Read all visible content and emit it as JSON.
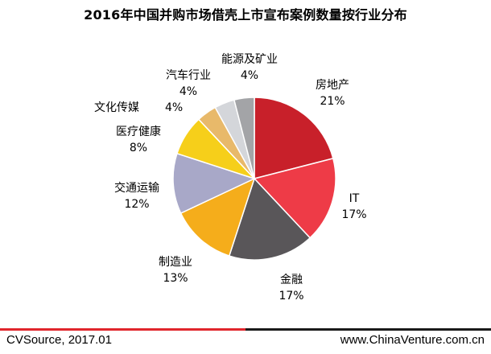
{
  "chart_data": {
    "type": "pie",
    "title": "2016年中国并购市场借壳上市宣布案例数量按行业分布",
    "slices": [
      {
        "name": "房地产",
        "label": "21%",
        "value": 21,
        "color": "#c8202a"
      },
      {
        "name": "IT",
        "label": "17%",
        "value": 17,
        "color": "#ee3b47"
      },
      {
        "name": "金融",
        "label": "17%",
        "value": 17,
        "color": "#595659"
      },
      {
        "name": "制造业",
        "label": "13%",
        "value": 13,
        "color": "#f5ad1b"
      },
      {
        "name": "交通运输",
        "label": "12%",
        "value": 12,
        "color": "#a8a8c8"
      },
      {
        "name": "医疗健康",
        "label": "8%",
        "value": 8,
        "color": "#f6cf1a"
      },
      {
        "name": "文化传媒",
        "label": "4%",
        "value": 4,
        "color": "#e8b96a"
      },
      {
        "name": "汽车行业",
        "label": "4%",
        "value": 4,
        "color": "#d4d6da"
      },
      {
        "name": "能源及矿业",
        "label": "4%",
        "value": 4,
        "color": "#a3a4a7"
      }
    ],
    "start_angle": "12 o'clock",
    "direction": "clockwise",
    "legend": "none"
  },
  "footer": {
    "source": "CVSource, 2017.01",
    "website": "www.ChinaVenture.com.cn",
    "line_left_color": "#e0252c",
    "line_right_color": "#1a1a1a"
  }
}
